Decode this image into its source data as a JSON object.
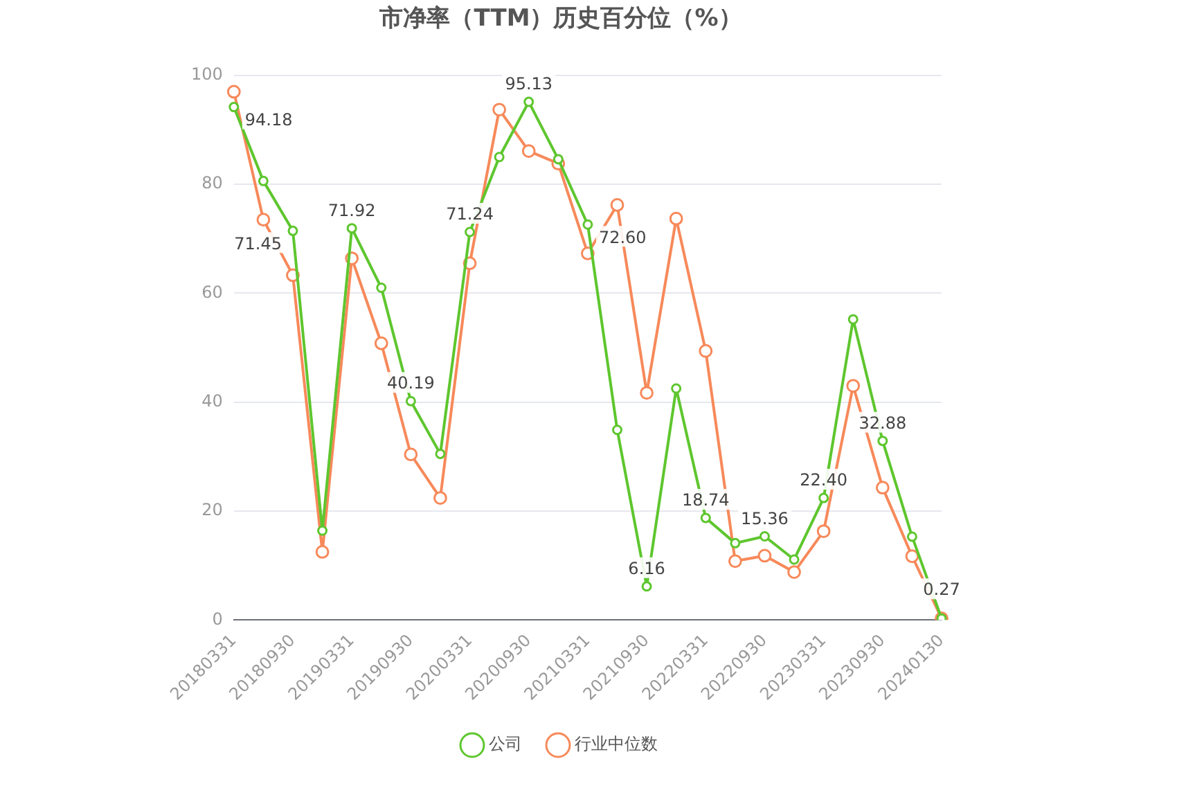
{
  "chart_data": {
    "type": "line",
    "title": "市净率（TTM）历史百分位（%）",
    "categories": [
      "20180331",
      null,
      "20180930",
      null,
      "20190331",
      null,
      "20190930",
      null,
      "20200331",
      null,
      "20200930",
      null,
      "20210331",
      null,
      "20210930",
      null,
      "20220331",
      null,
      "20220930",
      null,
      "20230331",
      null,
      "20230930",
      null,
      "20240130"
    ],
    "series": [
      {
        "name": "公司",
        "color": "#5ec62e",
        "values": [
          94.18,
          80.6,
          71.45,
          16.4,
          71.92,
          61.0,
          40.19,
          30.5,
          71.24,
          85.0,
          95.13,
          84.6,
          72.6,
          34.9,
          6.16,
          42.5,
          18.74,
          14.1,
          15.36,
          11.1,
          22.4,
          55.2,
          32.88,
          15.3,
          0.27
        ],
        "value_labels": [
          "94.18",
          null,
          "71.45",
          null,
          "71.92",
          null,
          "40.19",
          null,
          "71.24",
          null,
          "95.13",
          null,
          "72.60",
          null,
          "6.16",
          null,
          "18.74",
          null,
          "15.36",
          null,
          "22.40",
          null,
          "32.88",
          null,
          "0.27"
        ]
      },
      {
        "name": "行业中位数",
        "color": "#f7895a",
        "values": [
          97.0,
          73.5,
          63.3,
          12.5,
          66.4,
          50.8,
          30.4,
          22.4,
          65.5,
          93.7,
          86.1,
          83.8,
          67.3,
          76.2,
          41.7,
          73.7,
          49.4,
          10.8,
          11.8,
          8.8,
          16.3,
          43.0,
          24.3,
          11.7,
          0.3
        ]
      }
    ],
    "ylim": [
      0,
      100
    ],
    "yticks": [
      0,
      20,
      40,
      60,
      80,
      100
    ],
    "grid": "y",
    "legend": "bottom",
    "marker": "circle",
    "line_style": "solid"
  }
}
